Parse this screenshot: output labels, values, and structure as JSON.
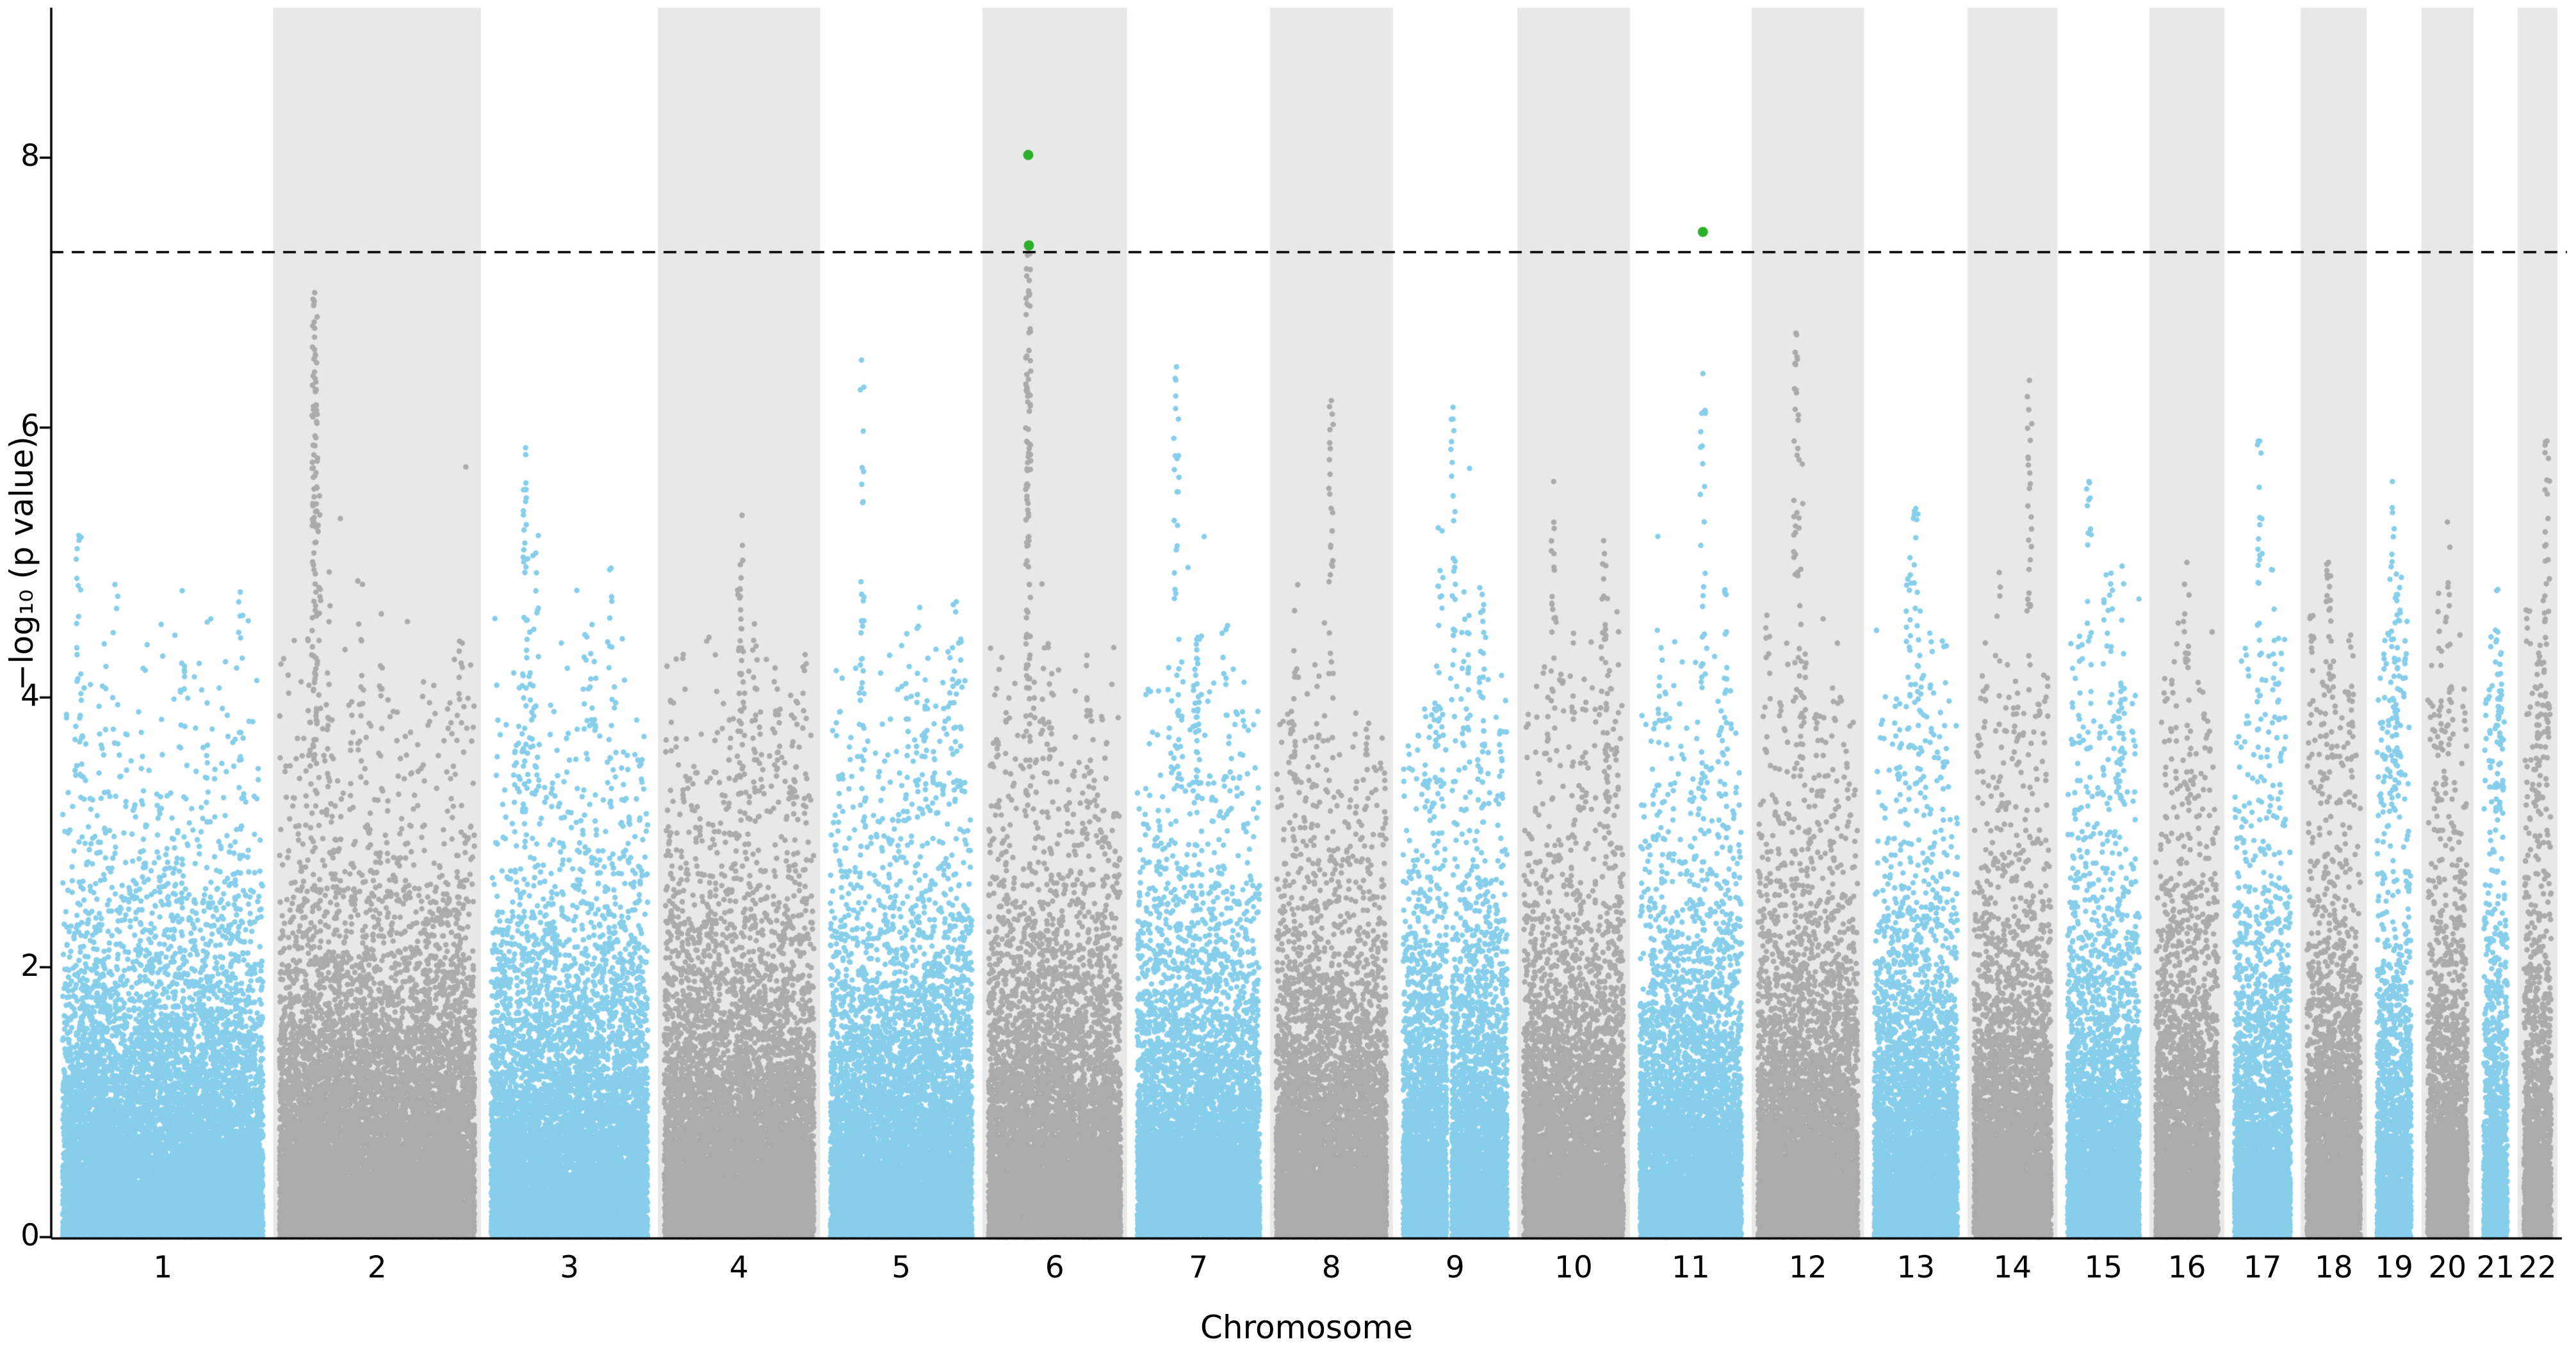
{
  "chart_data": {
    "type": "scatter",
    "subtype": "manhattan",
    "title": "",
    "xlabel": "Chromosome",
    "ylabel": "−log₁₀ (p value)",
    "ylim": [
      0,
      9.05
    ],
    "yticks": [
      0,
      2,
      4,
      6,
      8
    ],
    "grid": false,
    "legend": "none",
    "significance_threshold": 7.3,
    "threshold_line_style": "dashed",
    "colors": {
      "odd_chrom": "#87CEEB",
      "even_chrom": "#ABABAB",
      "band": "#E8E8E8",
      "significant": "#2BB02B",
      "axis": "#000000",
      "threshold_line": "#000000",
      "background": "#FFFFFF"
    },
    "chromosomes": [
      {
        "label": "1",
        "size_mb": 248,
        "peak": 5.2,
        "peak_rel": 0.08
      },
      {
        "label": "2",
        "size_mb": 242,
        "peak": 7.0,
        "peak_rel": 0.18
      },
      {
        "label": "3",
        "size_mb": 198,
        "peak": 5.85,
        "peak_rel": 0.22
      },
      {
        "label": "4",
        "size_mb": 190,
        "peak": 5.35,
        "peak_rel": 0.52
      },
      {
        "label": "5",
        "size_mb": 181,
        "peak": 6.5,
        "peak_rel": 0.22
      },
      {
        "label": "6",
        "size_mb": 170,
        "peak": 7.3,
        "peak_rel": 0.3
      },
      {
        "label": "7",
        "size_mb": 159,
        "peak": 6.45,
        "peak_rel": 0.32
      },
      {
        "label": "8",
        "size_mb": 145,
        "peak": 6.2,
        "peak_rel": 0.5
      },
      {
        "label": "9",
        "size_mb": 138,
        "peak": 6.15,
        "peak_rel": 0.48,
        "gap": [
          0.42,
          0.47
        ]
      },
      {
        "label": "10",
        "size_mb": 133,
        "peak": 5.6,
        "peak_rel": 0.3
      },
      {
        "label": "11",
        "size_mb": 135,
        "peak": 6.4,
        "peak_rel": 0.62
      },
      {
        "label": "12",
        "size_mb": 133,
        "peak": 6.7,
        "peak_rel": 0.38
      },
      {
        "label": "13",
        "size_mb": 114,
        "peak": 5.4,
        "peak_rel": 0.5
      },
      {
        "label": "14",
        "size_mb": 107,
        "peak": 6.35,
        "peak_rel": 0.72
      },
      {
        "label": "15",
        "size_mb": 101,
        "peak": 5.6,
        "peak_rel": 0.3
      },
      {
        "label": "16",
        "size_mb": 90,
        "peak": 5.0,
        "peak_rel": 0.5
      },
      {
        "label": "17",
        "size_mb": 83,
        "peak": 5.9,
        "peak_rel": 0.45
      },
      {
        "label": "18",
        "size_mb": 80,
        "peak": 5.0,
        "peak_rel": 0.4
      },
      {
        "label": "19",
        "size_mb": 58,
        "peak": 5.6,
        "peak_rel": 0.45
      },
      {
        "label": "20",
        "size_mb": 64,
        "peak": 5.3,
        "peak_rel": 0.5
      },
      {
        "label": "21",
        "size_mb": 46,
        "peak": 4.8,
        "peak_rel": 0.6
      },
      {
        "label": "22",
        "size_mb": 50,
        "peak": 5.9,
        "peak_rel": 0.85
      }
    ],
    "significant_points": [
      {
        "chromosome": "6",
        "rel_pos": 0.3,
        "y": 8.02
      },
      {
        "chromosome": "6",
        "rel_pos": 0.305,
        "y": 7.35
      },
      {
        "chromosome": "11",
        "rel_pos": 0.62,
        "y": 7.45
      }
    ]
  }
}
